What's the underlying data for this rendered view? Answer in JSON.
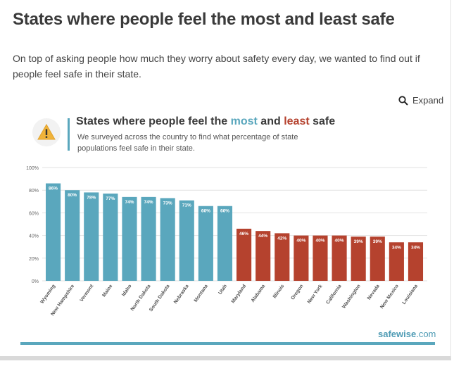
{
  "article": {
    "title": "States where people feel the most and least safe",
    "intro": "On top of asking people how much they worry about safety every day, we wanted to find out if people feel safe in their state."
  },
  "expand": {
    "label": "Expand",
    "icon": "search-icon"
  },
  "card": {
    "title_part1": "States where people feel the ",
    "title_most": "most",
    "title_part2": " and ",
    "title_least": "least",
    "title_part3": " safe",
    "subtitle": "We surveyed across the country to find what percentage of state populations feel safe in their state.",
    "icon": "warning-icon",
    "brand": "safewise",
    "brand_suffix": ".com"
  },
  "colors": {
    "most_safe": "#5aa7bd",
    "least_safe": "#b5422e",
    "grid": "#e2e2e2",
    "tick_text": "#666666"
  },
  "chart_data": {
    "type": "bar",
    "title": "States where people feel the most and least safe",
    "ylim": [
      0,
      100
    ],
    "yticks": [
      "0%",
      "20%",
      "40%",
      "60%",
      "80%",
      "100%"
    ],
    "ytick_values": [
      0,
      20,
      40,
      60,
      80,
      100
    ],
    "grid": true,
    "categories": [
      "Wyoming",
      "New Hampshire",
      "Vermont",
      "Maine",
      "Idaho",
      "North Dakota",
      "South Dakota",
      "Nebraska",
      "Montana",
      "Utah",
      "Maryland",
      "Alabama",
      "Illinois",
      "Oregon",
      "New York",
      "California",
      "Washington",
      "Nevada",
      "New Mexico",
      "Louisiana"
    ],
    "values": [
      86,
      80,
      78,
      77,
      74,
      74,
      73,
      71,
      66,
      66,
      46,
      44,
      42,
      40,
      40,
      40,
      39,
      39,
      34,
      34
    ],
    "labels": [
      "86%",
      "80%",
      "78%",
      "77%",
      "74%",
      "74%",
      "73%",
      "71%",
      "66%",
      "66%",
      "46%",
      "44%",
      "42%",
      "40%",
      "40%",
      "40%",
      "39%",
      "39%",
      "34%",
      "34%"
    ],
    "groups": [
      "most",
      "most",
      "most",
      "most",
      "most",
      "most",
      "most",
      "most",
      "most",
      "most",
      "least",
      "least",
      "least",
      "least",
      "least",
      "least",
      "least",
      "least",
      "least",
      "least"
    ]
  }
}
